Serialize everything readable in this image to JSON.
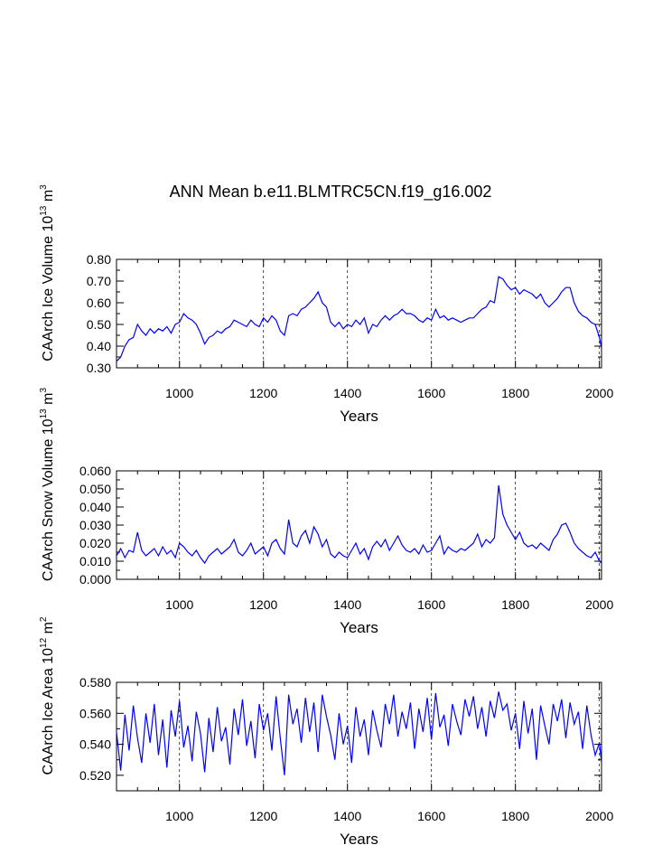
{
  "title": "ANN Mean b.e11.BLMTRC5CN.f19_g16.002",
  "series_color": "#0000ff",
  "chart_data": [
    {
      "type": "line",
      "ylabel": "CAArch Ice Volume 10",
      "ylabel_exp": "13",
      "ylabel_unit": " m",
      "ylabel_unit_exp": "3",
      "xlabel": "Years",
      "xlim": [
        850,
        2005
      ],
      "ylim": [
        0.3,
        0.8
      ],
      "xticks": [
        1000,
        1200,
        1400,
        1600,
        1800,
        2000
      ],
      "xtick_labels": [
        "1000",
        "1200",
        "1400",
        "1600",
        "1800",
        "2000"
      ],
      "yticks": [
        0.3,
        0.4,
        0.5,
        0.6,
        0.7,
        0.8
      ],
      "ytick_labels": [
        "0.30",
        "0.40",
        "0.50",
        "0.60",
        "0.70",
        "0.80"
      ],
      "grid": "vertical dashed",
      "series": [
        {
          "name": "CAArch Ice Volume",
          "x": [
            850,
            860,
            870,
            880,
            890,
            900,
            910,
            920,
            930,
            940,
            950,
            960,
            970,
            980,
            990,
            1000,
            1010,
            1020,
            1030,
            1040,
            1050,
            1060,
            1070,
            1080,
            1090,
            1100,
            1110,
            1120,
            1130,
            1140,
            1150,
            1160,
            1170,
            1180,
            1190,
            1200,
            1210,
            1220,
            1230,
            1240,
            1250,
            1260,
            1270,
            1280,
            1290,
            1300,
            1310,
            1320,
            1330,
            1340,
            1350,
            1360,
            1370,
            1380,
            1390,
            1400,
            1410,
            1420,
            1430,
            1440,
            1450,
            1460,
            1470,
            1480,
            1490,
            1500,
            1510,
            1520,
            1530,
            1540,
            1550,
            1560,
            1570,
            1580,
            1590,
            1600,
            1610,
            1620,
            1630,
            1640,
            1650,
            1660,
            1670,
            1680,
            1690,
            1700,
            1710,
            1720,
            1730,
            1740,
            1750,
            1760,
            1770,
            1780,
            1790,
            1800,
            1810,
            1820,
            1830,
            1840,
            1850,
            1860,
            1870,
            1880,
            1890,
            1900,
            1910,
            1920,
            1930,
            1940,
            1950,
            1960,
            1970,
            1980,
            1990,
            2000,
            2005
          ],
          "y": [
            0.33,
            0.35,
            0.4,
            0.43,
            0.44,
            0.5,
            0.47,
            0.45,
            0.48,
            0.46,
            0.48,
            0.47,
            0.49,
            0.46,
            0.5,
            0.51,
            0.55,
            0.53,
            0.52,
            0.5,
            0.46,
            0.41,
            0.44,
            0.45,
            0.47,
            0.46,
            0.48,
            0.49,
            0.52,
            0.51,
            0.5,
            0.49,
            0.52,
            0.5,
            0.49,
            0.53,
            0.51,
            0.54,
            0.52,
            0.47,
            0.45,
            0.54,
            0.55,
            0.54,
            0.57,
            0.58,
            0.6,
            0.62,
            0.65,
            0.6,
            0.58,
            0.51,
            0.49,
            0.51,
            0.48,
            0.5,
            0.49,
            0.52,
            0.5,
            0.53,
            0.46,
            0.5,
            0.49,
            0.52,
            0.54,
            0.52,
            0.54,
            0.55,
            0.57,
            0.55,
            0.55,
            0.54,
            0.52,
            0.51,
            0.53,
            0.52,
            0.57,
            0.53,
            0.54,
            0.52,
            0.53,
            0.52,
            0.51,
            0.52,
            0.53,
            0.53,
            0.55,
            0.57,
            0.58,
            0.61,
            0.6,
            0.72,
            0.71,
            0.68,
            0.66,
            0.67,
            0.64,
            0.66,
            0.65,
            0.64,
            0.62,
            0.64,
            0.6,
            0.58,
            0.6,
            0.62,
            0.65,
            0.67,
            0.67,
            0.6,
            0.56,
            0.54,
            0.53,
            0.51,
            0.5,
            0.44,
            0.39
          ]
        }
      ]
    },
    {
      "type": "line",
      "ylabel": "CAArch Snow Volume 10",
      "ylabel_exp": "13",
      "ylabel_unit": " m",
      "ylabel_unit_exp": "3",
      "xlabel": "Years",
      "xlim": [
        850,
        2005
      ],
      "ylim": [
        0.0,
        0.06
      ],
      "xticks": [
        1000,
        1200,
        1400,
        1600,
        1800,
        2000
      ],
      "xtick_labels": [
        "1000",
        "1200",
        "1400",
        "1600",
        "1800",
        "2000"
      ],
      "yticks": [
        0.0,
        0.01,
        0.02,
        0.03,
        0.04,
        0.05,
        0.06
      ],
      "ytick_labels": [
        "0.000",
        "0.010",
        "0.020",
        "0.030",
        "0.040",
        "0.050",
        "0.060"
      ],
      "grid": "vertical dashed",
      "series": [
        {
          "name": "CAArch Snow Volume",
          "x": [
            850,
            860,
            870,
            880,
            890,
            900,
            910,
            920,
            930,
            940,
            950,
            960,
            970,
            980,
            990,
            1000,
            1010,
            1020,
            1030,
            1040,
            1050,
            1060,
            1070,
            1080,
            1090,
            1100,
            1110,
            1120,
            1130,
            1140,
            1150,
            1160,
            1170,
            1180,
            1190,
            1200,
            1210,
            1220,
            1230,
            1240,
            1250,
            1260,
            1270,
            1280,
            1290,
            1300,
            1310,
            1320,
            1330,
            1340,
            1350,
            1360,
            1370,
            1380,
            1390,
            1400,
            1410,
            1420,
            1430,
            1440,
            1450,
            1460,
            1470,
            1480,
            1490,
            1500,
            1510,
            1520,
            1530,
            1540,
            1550,
            1560,
            1570,
            1580,
            1590,
            1600,
            1610,
            1620,
            1630,
            1640,
            1650,
            1660,
            1670,
            1680,
            1690,
            1700,
            1710,
            1720,
            1730,
            1740,
            1750,
            1760,
            1770,
            1780,
            1790,
            1800,
            1810,
            1820,
            1830,
            1840,
            1850,
            1860,
            1870,
            1880,
            1890,
            1900,
            1910,
            1920,
            1930,
            1940,
            1950,
            1960,
            1970,
            1980,
            1990,
            2000,
            2005
          ],
          "y": [
            0.013,
            0.017,
            0.012,
            0.016,
            0.015,
            0.026,
            0.016,
            0.013,
            0.015,
            0.017,
            0.013,
            0.018,
            0.014,
            0.016,
            0.012,
            0.02,
            0.018,
            0.015,
            0.013,
            0.016,
            0.012,
            0.009,
            0.013,
            0.015,
            0.017,
            0.014,
            0.016,
            0.018,
            0.022,
            0.015,
            0.013,
            0.016,
            0.02,
            0.014,
            0.016,
            0.018,
            0.013,
            0.02,
            0.022,
            0.017,
            0.014,
            0.033,
            0.02,
            0.018,
            0.024,
            0.027,
            0.02,
            0.029,
            0.025,
            0.018,
            0.022,
            0.014,
            0.012,
            0.015,
            0.013,
            0.012,
            0.016,
            0.02,
            0.014,
            0.017,
            0.011,
            0.018,
            0.021,
            0.018,
            0.022,
            0.016,
            0.02,
            0.024,
            0.019,
            0.016,
            0.015,
            0.017,
            0.014,
            0.019,
            0.015,
            0.016,
            0.02,
            0.024,
            0.014,
            0.018,
            0.016,
            0.015,
            0.017,
            0.016,
            0.018,
            0.02,
            0.025,
            0.018,
            0.022,
            0.02,
            0.023,
            0.052,
            0.036,
            0.03,
            0.026,
            0.022,
            0.026,
            0.02,
            0.018,
            0.019,
            0.017,
            0.02,
            0.018,
            0.016,
            0.022,
            0.025,
            0.03,
            0.031,
            0.026,
            0.02,
            0.017,
            0.015,
            0.013,
            0.012,
            0.015,
            0.01,
            0.009
          ]
        }
      ]
    },
    {
      "type": "line",
      "ylabel": "CAArch Ice Area 10",
      "ylabel_exp": "12",
      "ylabel_unit": " m",
      "ylabel_unit_exp": "2",
      "xlabel": "Years",
      "xlim": [
        850,
        2005
      ],
      "ylim": [
        0.51,
        0.58
      ],
      "xticks": [
        1000,
        1200,
        1400,
        1600,
        1800,
        2000
      ],
      "xtick_labels": [
        "1000",
        "1200",
        "1400",
        "1600",
        "1800",
        "2000"
      ],
      "yticks": [
        0.52,
        0.54,
        0.56,
        0.58
      ],
      "ytick_labels": [
        "0.520",
        "0.540",
        "0.560",
        "0.580"
      ],
      "grid": "vertical dashed",
      "series": [
        {
          "name": "CAArch Ice Area",
          "x": [
            850,
            860,
            870,
            880,
            890,
            900,
            910,
            920,
            930,
            940,
            950,
            960,
            970,
            980,
            990,
            1000,
            1010,
            1020,
            1030,
            1040,
            1050,
            1060,
            1070,
            1080,
            1090,
            1100,
            1110,
            1120,
            1130,
            1140,
            1150,
            1160,
            1170,
            1180,
            1190,
            1200,
            1210,
            1220,
            1230,
            1240,
            1250,
            1260,
            1270,
            1280,
            1290,
            1300,
            1310,
            1320,
            1330,
            1340,
            1350,
            1360,
            1370,
            1380,
            1390,
            1400,
            1410,
            1420,
            1430,
            1440,
            1450,
            1460,
            1470,
            1480,
            1490,
            1500,
            1510,
            1520,
            1530,
            1540,
            1550,
            1560,
            1570,
            1580,
            1590,
            1600,
            1610,
            1620,
            1630,
            1640,
            1650,
            1660,
            1670,
            1680,
            1690,
            1700,
            1710,
            1720,
            1730,
            1740,
            1750,
            1760,
            1770,
            1780,
            1790,
            1800,
            1810,
            1820,
            1830,
            1840,
            1850,
            1860,
            1870,
            1880,
            1890,
            1900,
            1910,
            1920,
            1930,
            1940,
            1950,
            1960,
            1970,
            1980,
            1990,
            2000,
            2005
          ],
          "y": [
            0.548,
            0.523,
            0.559,
            0.536,
            0.565,
            0.544,
            0.528,
            0.56,
            0.541,
            0.566,
            0.533,
            0.556,
            0.525,
            0.562,
            0.545,
            0.568,
            0.538,
            0.552,
            0.529,
            0.561,
            0.547,
            0.522,
            0.557,
            0.535,
            0.564,
            0.542,
            0.551,
            0.527,
            0.563,
            0.546,
            0.569,
            0.539,
            0.555,
            0.531,
            0.566,
            0.549,
            0.56,
            0.536,
            0.571,
            0.544,
            0.52,
            0.572,
            0.553,
            0.563,
            0.541,
            0.57,
            0.548,
            0.567,
            0.535,
            0.572,
            0.558,
            0.546,
            0.53,
            0.56,
            0.54,
            0.552,
            0.528,
            0.564,
            0.545,
            0.556,
            0.533,
            0.562,
            0.549,
            0.538,
            0.566,
            0.553,
            0.572,
            0.545,
            0.561,
            0.55,
            0.567,
            0.537,
            0.563,
            0.548,
            0.57,
            0.543,
            0.573,
            0.551,
            0.559,
            0.539,
            0.566,
            0.555,
            0.546,
            0.569,
            0.558,
            0.571,
            0.55,
            0.564,
            0.545,
            0.568,
            0.557,
            0.574,
            0.562,
            0.566,
            0.549,
            0.56,
            0.537,
            0.568,
            0.547,
            0.563,
            0.53,
            0.565,
            0.552,
            0.54,
            0.566,
            0.555,
            0.569,
            0.544,
            0.567,
            0.553,
            0.561,
            0.537,
            0.565,
            0.546,
            0.533,
            0.541,
            0.528
          ]
        }
      ]
    }
  ]
}
